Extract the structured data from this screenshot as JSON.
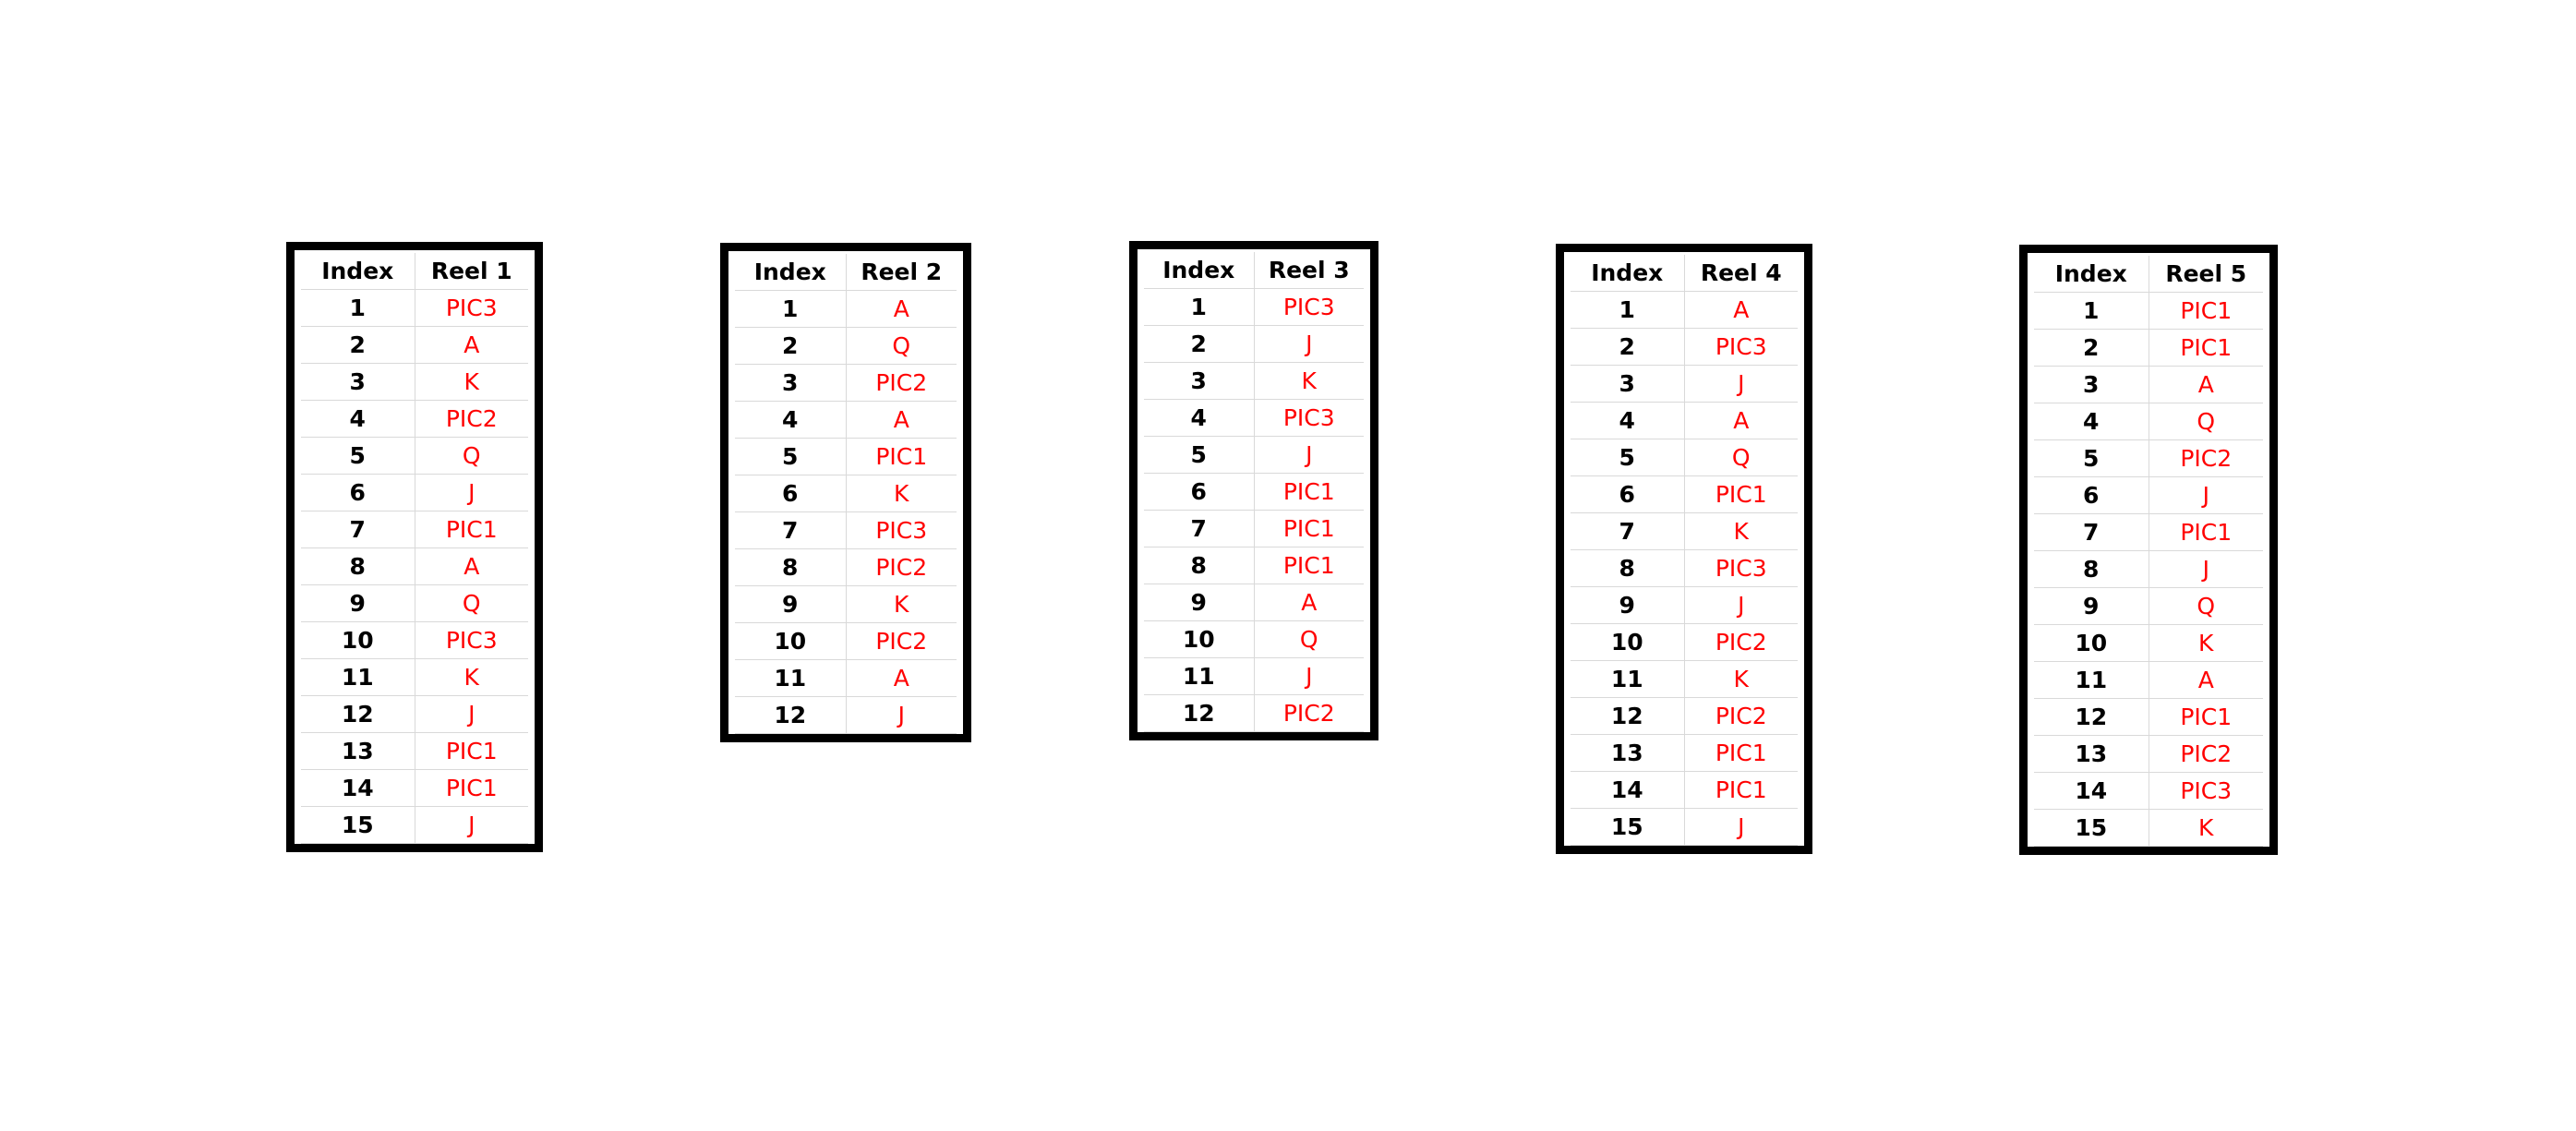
{
  "colors": {
    "symbol": "#ff0000",
    "text": "#000000",
    "frame": "#000000",
    "grid": "#d9d9d9"
  },
  "reels": [
    {
      "header_index": "Index",
      "header_reel": "Reel 1",
      "rows": [
        {
          "i": "1",
          "s": "PIC3"
        },
        {
          "i": "2",
          "s": "A"
        },
        {
          "i": "3",
          "s": "K"
        },
        {
          "i": "4",
          "s": "PIC2"
        },
        {
          "i": "5",
          "s": "Q"
        },
        {
          "i": "6",
          "s": "J"
        },
        {
          "i": "7",
          "s": "PIC1"
        },
        {
          "i": "8",
          "s": "A"
        },
        {
          "i": "9",
          "s": "Q"
        },
        {
          "i": "10",
          "s": "PIC3"
        },
        {
          "i": "11",
          "s": "K"
        },
        {
          "i": "12",
          "s": "J"
        },
        {
          "i": "13",
          "s": "PIC1"
        },
        {
          "i": "14",
          "s": "PIC1"
        },
        {
          "i": "15",
          "s": "J"
        }
      ]
    },
    {
      "header_index": "Index",
      "header_reel": "Reel 2",
      "rows": [
        {
          "i": "1",
          "s": "A"
        },
        {
          "i": "2",
          "s": "Q"
        },
        {
          "i": "3",
          "s": "PIC2"
        },
        {
          "i": "4",
          "s": "A"
        },
        {
          "i": "5",
          "s": "PIC1"
        },
        {
          "i": "6",
          "s": "K"
        },
        {
          "i": "7",
          "s": "PIC3"
        },
        {
          "i": "8",
          "s": "PIC2"
        },
        {
          "i": "9",
          "s": "K"
        },
        {
          "i": "10",
          "s": "PIC2"
        },
        {
          "i": "11",
          "s": "A"
        },
        {
          "i": "12",
          "s": "J"
        }
      ]
    },
    {
      "header_index": "Index",
      "header_reel": "Reel 3",
      "rows": [
        {
          "i": "1",
          "s": "PIC3"
        },
        {
          "i": "2",
          "s": "J"
        },
        {
          "i": "3",
          "s": "K"
        },
        {
          "i": "4",
          "s": "PIC3"
        },
        {
          "i": "5",
          "s": "J"
        },
        {
          "i": "6",
          "s": "PIC1"
        },
        {
          "i": "7",
          "s": "PIC1"
        },
        {
          "i": "8",
          "s": "PIC1"
        },
        {
          "i": "9",
          "s": "A"
        },
        {
          "i": "10",
          "s": "Q"
        },
        {
          "i": "11",
          "s": "J"
        },
        {
          "i": "12",
          "s": "PIC2"
        }
      ]
    },
    {
      "header_index": "Index",
      "header_reel": "Reel 4",
      "rows": [
        {
          "i": "1",
          "s": "A"
        },
        {
          "i": "2",
          "s": "PIC3"
        },
        {
          "i": "3",
          "s": "J"
        },
        {
          "i": "4",
          "s": "A"
        },
        {
          "i": "5",
          "s": "Q"
        },
        {
          "i": "6",
          "s": "PIC1"
        },
        {
          "i": "7",
          "s": "K"
        },
        {
          "i": "8",
          "s": "PIC3"
        },
        {
          "i": "9",
          "s": "J"
        },
        {
          "i": "10",
          "s": "PIC2"
        },
        {
          "i": "11",
          "s": "K"
        },
        {
          "i": "12",
          "s": "PIC2"
        },
        {
          "i": "13",
          "s": "PIC1"
        },
        {
          "i": "14",
          "s": "PIC1"
        },
        {
          "i": "15",
          "s": "J"
        }
      ]
    },
    {
      "header_index": "Index",
      "header_reel": "Reel 5",
      "rows": [
        {
          "i": "1",
          "s": "PIC1"
        },
        {
          "i": "2",
          "s": "PIC1"
        },
        {
          "i": "3",
          "s": "A"
        },
        {
          "i": "4",
          "s": "Q"
        },
        {
          "i": "5",
          "s": "PIC2"
        },
        {
          "i": "6",
          "s": "J"
        },
        {
          "i": "7",
          "s": "PIC1"
        },
        {
          "i": "8",
          "s": "J"
        },
        {
          "i": "9",
          "s": "Q"
        },
        {
          "i": "10",
          "s": "K"
        },
        {
          "i": "11",
          "s": "A"
        },
        {
          "i": "12",
          "s": "PIC1"
        },
        {
          "i": "13",
          "s": "PIC2"
        },
        {
          "i": "14",
          "s": "PIC3"
        },
        {
          "i": "15",
          "s": "K"
        }
      ]
    }
  ]
}
